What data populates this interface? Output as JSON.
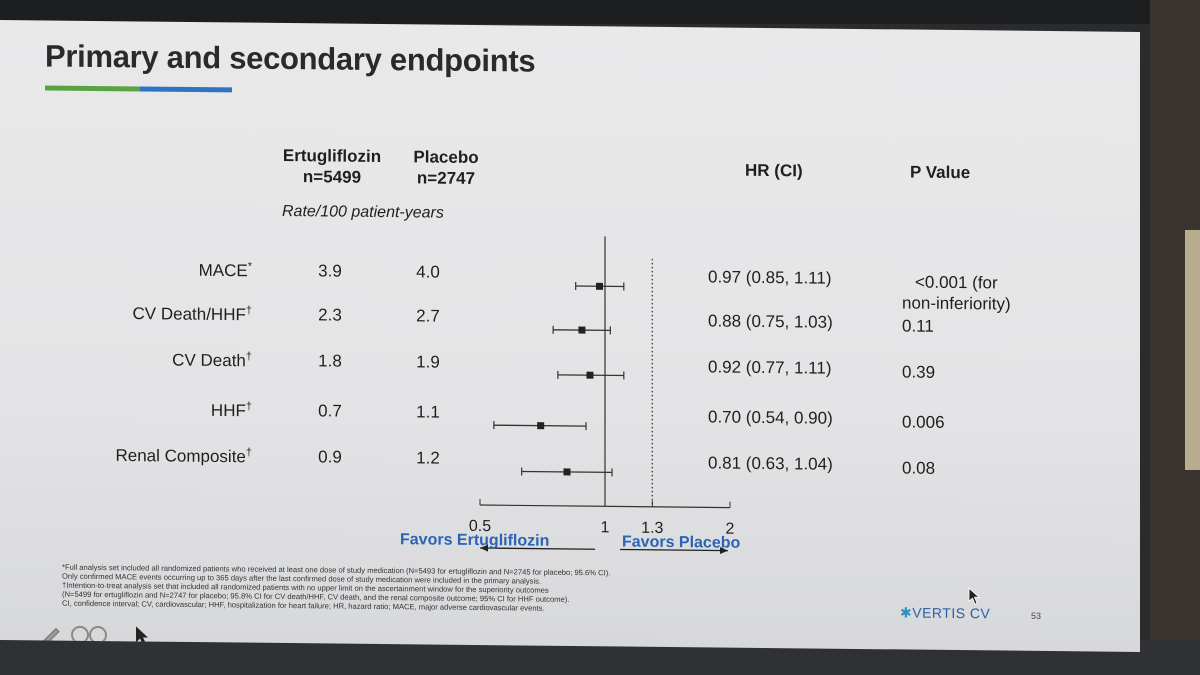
{
  "slide": {
    "title": "Primary and secondary endpoints",
    "colors": {
      "accent_green": "#5aa342",
      "accent_blue": "#2f74c4",
      "favors": "#2b63b5"
    }
  },
  "columns": {
    "ertu_name": "Ertugliflozin",
    "ertu_n": "n=5499",
    "placebo_name": "Placebo",
    "placebo_n": "n=2747",
    "rate_label": "Rate/100 patient-years",
    "hr_header": "HR (CI)",
    "p_header": "P Value"
  },
  "chart_data": {
    "type": "forest",
    "rows": [
      {
        "label": "MACE",
        "mark": "*",
        "ertu_rate": "3.9",
        "placebo_rate": "4.0",
        "hr": 0.97,
        "ci": [
          0.85,
          1.11
        ],
        "hr_text": "0.97 (0.85, 1.11)",
        "p_lines": [
          "<0.001 (for",
          "non-inferiority)"
        ]
      },
      {
        "label": "CV Death/HHF",
        "mark": "†",
        "ertu_rate": "2.3",
        "placebo_rate": "2.7",
        "hr": 0.88,
        "ci": [
          0.75,
          1.03
        ],
        "hr_text": "0.88 (0.75, 1.03)",
        "p_lines": [
          "0.11"
        ]
      },
      {
        "label": "CV Death",
        "mark": "†",
        "ertu_rate": "1.8",
        "placebo_rate": "1.9",
        "hr": 0.92,
        "ci": [
          0.77,
          1.11
        ],
        "hr_text": "0.92 (0.77, 1.11)",
        "p_lines": [
          "0.39"
        ]
      },
      {
        "label": "HHF",
        "mark": "†",
        "ertu_rate": "0.7",
        "placebo_rate": "1.1",
        "hr": 0.7,
        "ci": [
          0.54,
          0.9
        ],
        "hr_text": "0.70 (0.54, 0.90)",
        "p_lines": [
          "0.006"
        ]
      },
      {
        "label": "Renal Composite",
        "mark": "†",
        "ertu_rate": "0.9",
        "placebo_rate": "1.2",
        "hr": 0.81,
        "ci": [
          0.63,
          1.04
        ],
        "hr_text": "0.81 (0.63, 1.04)",
        "p_lines": [
          "0.08"
        ]
      }
    ],
    "x_scale": "log",
    "xlim": [
      0.5,
      2
    ],
    "x_ticks": [
      0.5,
      1,
      1.3,
      2
    ],
    "x_tick_labels": [
      "0.5",
      "1",
      "1.3",
      "2"
    ],
    "reference_line": 1,
    "noninferiority_margin": 1.3,
    "favors_left": "Favors Ertugliflozin",
    "favors_right": "Favors Placebo"
  },
  "footnotes": [
    "*Full analysis set included all randomized patients who received at least one dose of study medication (N=5493 for ertugliflozin and N=2745 for placebo; 95.6% CI).",
    "Only confirmed MACE events occurring up to 365 days after the last confirmed dose of study medication were included in the primary analysis.",
    "†Intention-to-treat analysis set that included all randomized patients with no upper limit on the ascertainment window for the superiority outcomes",
    "(N=5499 for ertugliflozin and N=2747 for placebo; 95.8% CI for CV death/HHF, CV death, and the renal composite outcome; 95% CI for HHF outcome).",
    "CI, confidence interval; CV, cardiovascular; HHF, hospitalization for heart failure; HR, hazard ratio; MACE, major adverse cardiovascular events."
  ],
  "brand": {
    "name": "VERTIS CV",
    "icon": "asterisk-star-icon"
  },
  "page_number": "53",
  "toolbar_icons": [
    "pen-icon",
    "zoom-icon",
    "pointer-icon"
  ]
}
